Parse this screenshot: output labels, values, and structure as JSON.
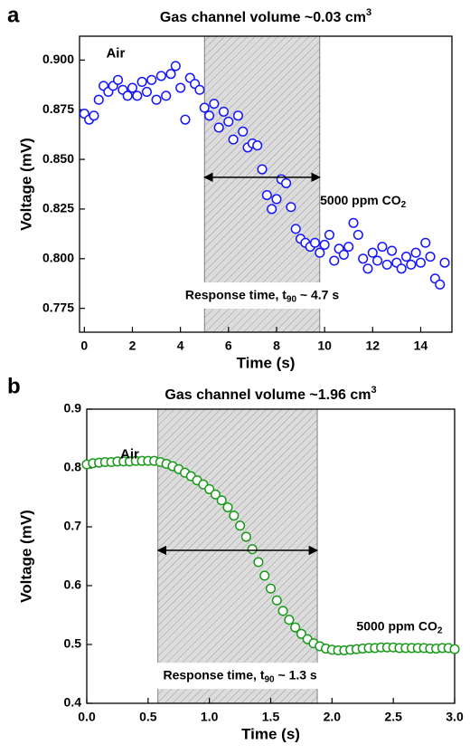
{
  "chart_data": [
    {
      "type": "scatter",
      "panel": "a",
      "title": "Gas channel volume ~0.03 cm",
      "title_sup": "3",
      "xlabel": "Time (s)",
      "ylabel": "Voltage (mV)",
      "xlim": [
        -0.2,
        15.3
      ],
      "ylim": [
        0.763,
        0.912
      ],
      "xticks": [
        0,
        2,
        4,
        6,
        8,
        10,
        12,
        14
      ],
      "yticks": [
        {
          "value": 0.775,
          "label": "0.775"
        },
        {
          "value": 0.8,
          "label": "0.800"
        },
        {
          "value": 0.825,
          "label": "0.825"
        },
        {
          "value": 0.85,
          "label": "0.850"
        },
        {
          "value": 0.875,
          "label": "0.875"
        },
        {
          "value": 0.9,
          "label": "0.900"
        }
      ],
      "color": "#1414ff",
      "x": [
        0,
        0.2,
        0.4,
        0.6,
        0.8,
        1,
        1.2,
        1.4,
        1.6,
        1.8,
        2,
        2.2,
        2.4,
        2.6,
        2.8,
        3,
        3.2,
        3.4,
        3.6,
        3.8,
        4,
        4.2,
        4.4,
        4.6,
        4.8,
        5,
        5.2,
        5.4,
        5.6,
        5.8,
        6,
        6.2,
        6.4,
        6.6,
        6.8,
        7,
        7.2,
        7.4,
        7.6,
        7.8,
        8,
        8.2,
        8.4,
        8.6,
        8.8,
        9,
        9.2,
        9.4,
        9.6,
        9.8,
        10,
        10.2,
        10.4,
        10.6,
        10.8,
        11,
        11.2,
        11.4,
        11.6,
        11.8,
        12,
        12.2,
        12.4,
        12.6,
        12.8,
        13,
        13.2,
        13.4,
        13.6,
        13.8,
        14,
        14.2,
        14.4,
        14.6,
        14.8,
        15
      ],
      "values": [
        0.873,
        0.87,
        0.872,
        0.88,
        0.887,
        0.884,
        0.887,
        0.89,
        0.885,
        0.882,
        0.886,
        0.882,
        0.889,
        0.884,
        0.89,
        0.88,
        0.892,
        0.882,
        0.893,
        0.897,
        0.886,
        0.87,
        0.891,
        0.888,
        0.885,
        0.876,
        0.872,
        0.878,
        0.866,
        0.874,
        0.869,
        0.86,
        0.872,
        0.864,
        0.856,
        0.858,
        0.857,
        0.845,
        0.832,
        0.825,
        0.83,
        0.84,
        0.838,
        0.826,
        0.815,
        0.81,
        0.808,
        0.806,
        0.808,
        0.803,
        0.807,
        0.812,
        0.799,
        0.805,
        0.802,
        0.806,
        0.818,
        0.812,
        0.8,
        0.795,
        0.803,
        0.799,
        0.806,
        0.797,
        0.804,
        0.798,
        0.795,
        0.801,
        0.797,
        0.803,
        0.798,
        0.808,
        0.801,
        0.79,
        0.787,
        0.798
      ],
      "shade": [
        5,
        9.8
      ],
      "arrow_y": 0.841,
      "air_label": "Air",
      "gas_label": [
        "5000 ppm CO",
        "2"
      ],
      "response_label": [
        "Response time, t",
        "90",
        " ~ 4.7 s"
      ]
    },
    {
      "type": "scatter",
      "panel": "b",
      "title": "Gas channel volume ~1.96 cm",
      "title_sup": "3",
      "xlabel": "Time (s)",
      "ylabel": "Voltage (mV)",
      "xlim": [
        0,
        3
      ],
      "ylim": [
        0.4,
        0.9
      ],
      "xticks": [
        {
          "value": 0,
          "label": "0.0"
        },
        0.5,
        {
          "value": 1,
          "label": "1.0"
        },
        1.5,
        {
          "value": 2,
          "label": "2.0"
        },
        2.5,
        {
          "value": 3,
          "label": "3.0"
        }
      ],
      "yticks": [
        0.4,
        0.5,
        0.6,
        0.7,
        0.8,
        0.9
      ],
      "color": "#1a9a1a",
      "x": [
        0,
        0.05,
        0.1,
        0.15,
        0.2,
        0.25,
        0.3,
        0.35,
        0.4,
        0.45,
        0.5,
        0.55,
        0.6,
        0.65,
        0.7,
        0.75,
        0.8,
        0.85,
        0.9,
        0.95,
        1,
        1.05,
        1.1,
        1.15,
        1.2,
        1.25,
        1.3,
        1.35,
        1.4,
        1.45,
        1.5,
        1.55,
        1.6,
        1.65,
        1.7,
        1.75,
        1.8,
        1.85,
        1.9,
        1.95,
        2,
        2.05,
        2.1,
        2.15,
        2.2,
        2.25,
        2.3,
        2.35,
        2.4,
        2.45,
        2.5,
        2.55,
        2.6,
        2.65,
        2.7,
        2.75,
        2.8,
        2.85,
        2.9,
        2.95,
        3
      ],
      "values": [
        0.806,
        0.808,
        0.809,
        0.81,
        0.81,
        0.811,
        0.811,
        0.811,
        0.812,
        0.812,
        0.812,
        0.812,
        0.81,
        0.807,
        0.803,
        0.798,
        0.792,
        0.786,
        0.779,
        0.772,
        0.764,
        0.755,
        0.745,
        0.733,
        0.719,
        0.702,
        0.683,
        0.662,
        0.64,
        0.617,
        0.595,
        0.575,
        0.557,
        0.542,
        0.529,
        0.518,
        0.509,
        0.502,
        0.497,
        0.493,
        0.491,
        0.49,
        0.49,
        0.491,
        0.492,
        0.493,
        0.494,
        0.494,
        0.495,
        0.495,
        0.495,
        0.494,
        0.494,
        0.494,
        0.494,
        0.494,
        0.493,
        0.493,
        0.494,
        0.494,
        0.492
      ],
      "shade": [
        0.58,
        1.88
      ],
      "arrow_y": 0.66,
      "air_label": "Air",
      "gas_label": [
        "5000 ppm CO",
        "2"
      ],
      "response_label": [
        "Response time, t",
        "90",
        " ~ 1.3 s"
      ]
    }
  ]
}
